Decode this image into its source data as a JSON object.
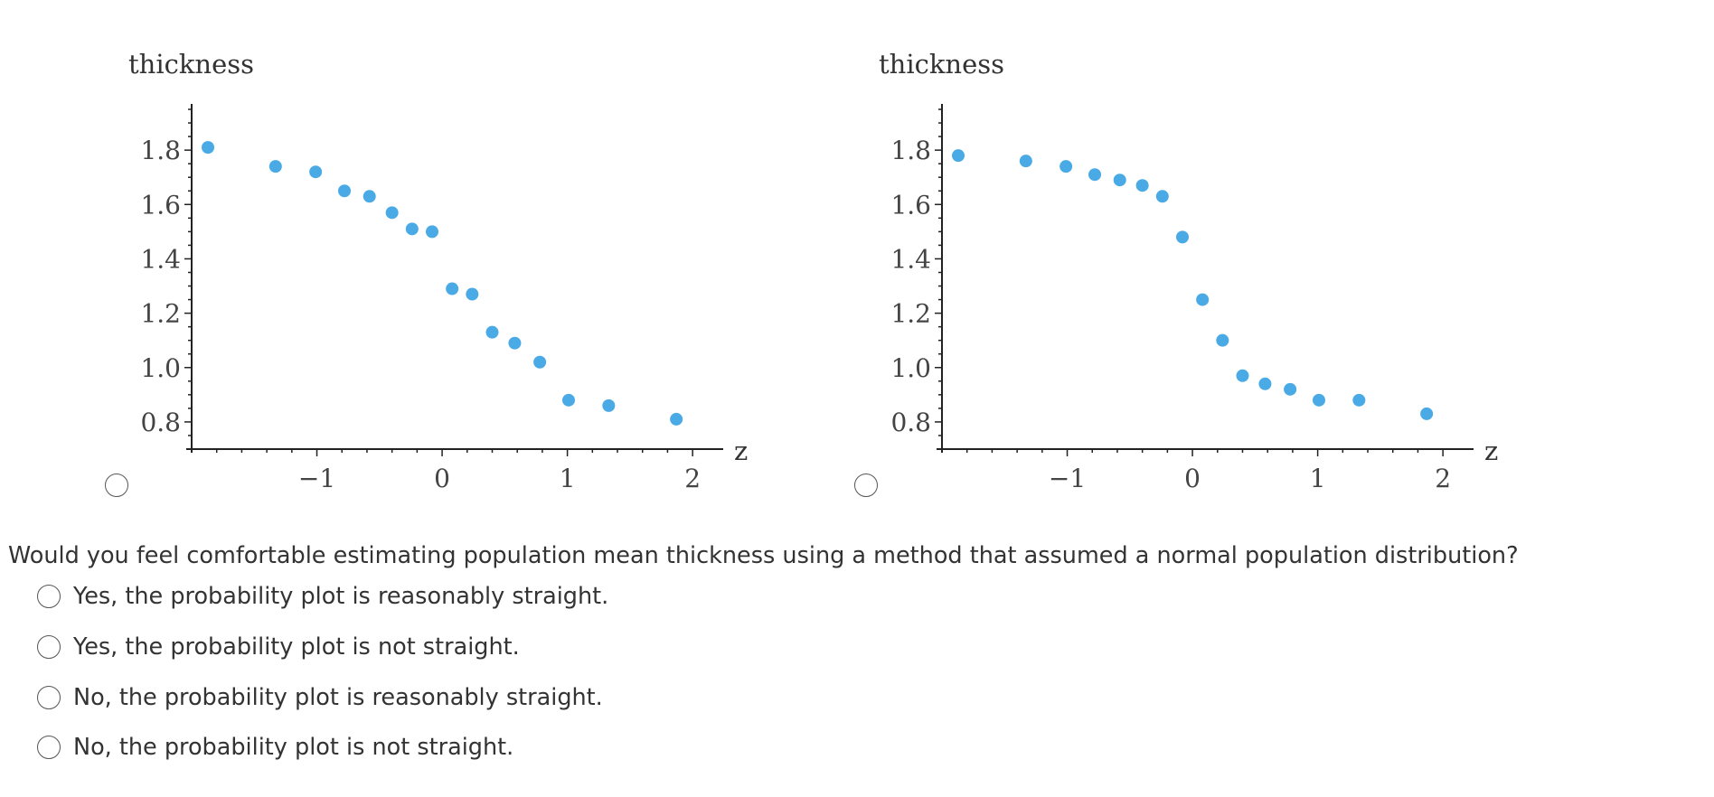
{
  "question": "Would you feel comfortable estimating population mean thickness using a method that assumed a normal population distribution?",
  "options": [
    {
      "label": "Yes, the probability plot is reasonably straight."
    },
    {
      "label": "Yes, the probability plot is not straight."
    },
    {
      "label": "No, the probability plot is reasonably straight."
    },
    {
      "label": "No, the probability plot is not straight."
    }
  ],
  "chart_data": [
    {
      "type": "scatter",
      "title": "",
      "xlabel": "z",
      "ylabel": "thickness",
      "xlim": [
        -2.0,
        2.1
      ],
      "ylim": [
        0.7,
        1.97
      ],
      "x_ticks": [
        -1,
        0,
        1,
        2
      ],
      "x_tick_labels": [
        "−1",
        "0",
        "1",
        "2"
      ],
      "y_ticks": [
        0.8,
        1.0,
        1.2,
        1.4,
        1.6,
        1.8
      ],
      "y_tick_labels": [
        "0.8",
        "1.0",
        "1.2",
        "1.4",
        "1.6",
        "1.8"
      ],
      "grid": false,
      "color": "#4aaae6",
      "points": [
        {
          "x": -1.87,
          "y": 1.81
        },
        {
          "x": -1.33,
          "y": 1.74
        },
        {
          "x": -1.01,
          "y": 1.72
        },
        {
          "x": -0.78,
          "y": 1.65
        },
        {
          "x": -0.58,
          "y": 1.63
        },
        {
          "x": -0.4,
          "y": 1.57
        },
        {
          "x": -0.24,
          "y": 1.51
        },
        {
          "x": -0.08,
          "y": 1.5
        },
        {
          "x": 0.08,
          "y": 1.29
        },
        {
          "x": 0.24,
          "y": 1.27
        },
        {
          "x": 0.4,
          "y": 1.13
        },
        {
          "x": 0.58,
          "y": 1.09
        },
        {
          "x": 0.78,
          "y": 1.02
        },
        {
          "x": 1.01,
          "y": 0.88
        },
        {
          "x": 1.33,
          "y": 0.86
        },
        {
          "x": 1.87,
          "y": 0.81
        }
      ]
    },
    {
      "type": "scatter",
      "title": "",
      "xlabel": "z",
      "ylabel": "thickness",
      "xlim": [
        -2.0,
        2.1
      ],
      "ylim": [
        0.7,
        1.97
      ],
      "x_ticks": [
        -1,
        0,
        1,
        2
      ],
      "x_tick_labels": [
        "−1",
        "0",
        "1",
        "2"
      ],
      "y_ticks": [
        0.8,
        1.0,
        1.2,
        1.4,
        1.6,
        1.8
      ],
      "y_tick_labels": [
        "0.8",
        "1.0",
        "1.2",
        "1.4",
        "1.6",
        "1.8"
      ],
      "grid": false,
      "color": "#4aaae6",
      "points": [
        {
          "x": -1.87,
          "y": 1.78
        },
        {
          "x": -1.33,
          "y": 1.76
        },
        {
          "x": -1.01,
          "y": 1.74
        },
        {
          "x": -0.78,
          "y": 1.71
        },
        {
          "x": -0.58,
          "y": 1.69
        },
        {
          "x": -0.4,
          "y": 1.67
        },
        {
          "x": -0.24,
          "y": 1.63
        },
        {
          "x": -0.08,
          "y": 1.48
        },
        {
          "x": 0.08,
          "y": 1.25
        },
        {
          "x": 0.24,
          "y": 1.1
        },
        {
          "x": 0.4,
          "y": 0.97
        },
        {
          "x": 0.58,
          "y": 0.94
        },
        {
          "x": 0.78,
          "y": 0.92
        },
        {
          "x": 1.01,
          "y": 0.88
        },
        {
          "x": 1.33,
          "y": 0.88
        },
        {
          "x": 1.87,
          "y": 0.83
        }
      ]
    }
  ]
}
